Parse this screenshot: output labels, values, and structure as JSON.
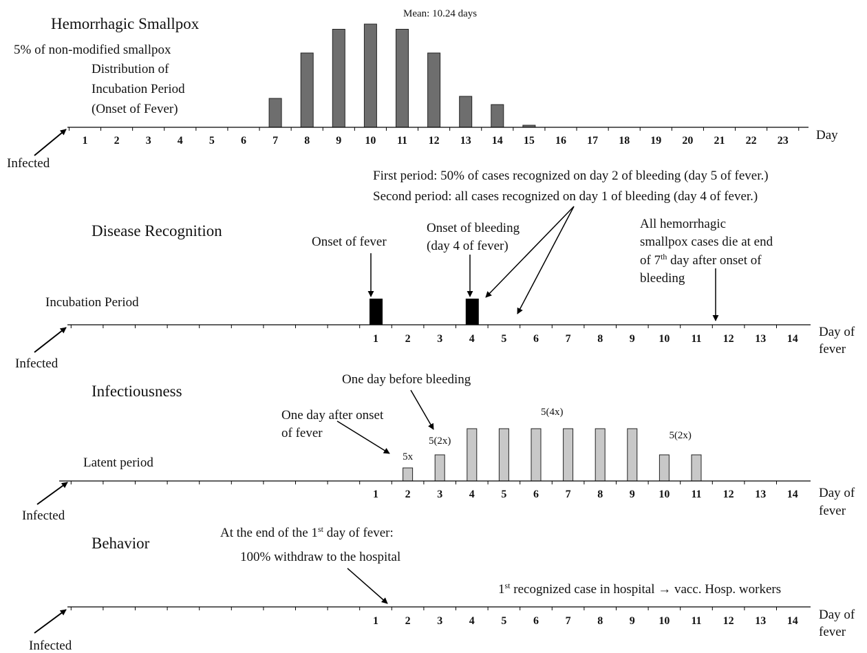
{
  "panel1": {
    "title": "Hemorrhagic Smallpox",
    "subtitle": "5% of non-modified smallpox",
    "caption": [
      "Distribution of",
      "Incubation Period",
      "(Onset of Fever)"
    ],
    "mean_label": "Mean: 10.24 days",
    "axis_unit": "Day",
    "infected_label": "Infected"
  },
  "panel2": {
    "title": "Disease Recognition",
    "note_first": "First period: 50% of cases recognized on day 2 of bleeding (day 5 of fever.)",
    "note_second": "Second period: all cases recognized on day 1 of bleeding (day 4 of fever.)",
    "onset_fever": "Onset of fever",
    "onset_bleeding": [
      "Onset of bleeding",
      "(day 4 of fever)"
    ],
    "die_note": [
      "All hemorrhagic",
      "smallpox cases die at end",
      "of 7",
      "th",
      " day after onset of",
      "bleeding"
    ],
    "period_label": "Incubation Period",
    "axis_unit": [
      "Day of",
      "fever"
    ],
    "infected_label": "Infected",
    "events": [
      1,
      4
    ]
  },
  "panel3": {
    "title": "Infectiousness",
    "before_bleeding": "One day before bleeding",
    "after_onset": [
      "One day after onset",
      "of fever"
    ],
    "period_label": "Latent period",
    "bar_labels": [
      {
        "text": "5x",
        "day": 2
      },
      {
        "text": "5(2x)",
        "day": 3
      },
      {
        "text": "5(4x)",
        "day": 6.5
      },
      {
        "text": "5(2x)",
        "day": 10.5
      }
    ],
    "axis_unit": [
      "Day of",
      "fever"
    ],
    "infected_label": "Infected",
    "bars": [
      {
        "day": 2,
        "level": 1
      },
      {
        "day": 3,
        "level": 2
      },
      {
        "day": 4,
        "level": 4
      },
      {
        "day": 5,
        "level": 4
      },
      {
        "day": 6,
        "level": 4
      },
      {
        "day": 7,
        "level": 4
      },
      {
        "day": 8,
        "level": 4
      },
      {
        "day": 9,
        "level": 4
      },
      {
        "day": 10,
        "level": 2
      },
      {
        "day": 11,
        "level": 2
      }
    ]
  },
  "panel4": {
    "title": "Behavior",
    "note_line1": [
      "At the end of the 1",
      "st",
      " day of fever:"
    ],
    "note_line2": "100% withdraw to the hospital",
    "hospital_note": [
      "1",
      "st",
      " recognized case in hospital → vacc. Hosp. workers"
    ],
    "axis_unit": [
      "Day of",
      "fever"
    ],
    "infected_label": "Infected"
  },
  "chart_data": {
    "type": "bar",
    "title": "Hemorrhagic Smallpox",
    "xlabel": "Day",
    "categories": [
      "1",
      "2",
      "3",
      "4",
      "5",
      "6",
      "7",
      "8",
      "9",
      "10",
      "11",
      "12",
      "13",
      "14",
      "15",
      "16",
      "17",
      "18",
      "19",
      "20",
      "21",
      "22",
      "23"
    ],
    "values": [
      0,
      0,
      0,
      0,
      0,
      0,
      0.28,
      0.72,
      0.95,
      1.0,
      0.95,
      0.72,
      0.3,
      0.22,
      0.02,
      0,
      0,
      0,
      0,
      0,
      0,
      0,
      0
    ],
    "annotation": "Mean: 10.24 days"
  },
  "colors": {
    "hist_bar": "#6e6e6e",
    "event_bar": "#000000",
    "infect_bar": "#c8c8c8",
    "line": "#000000"
  }
}
